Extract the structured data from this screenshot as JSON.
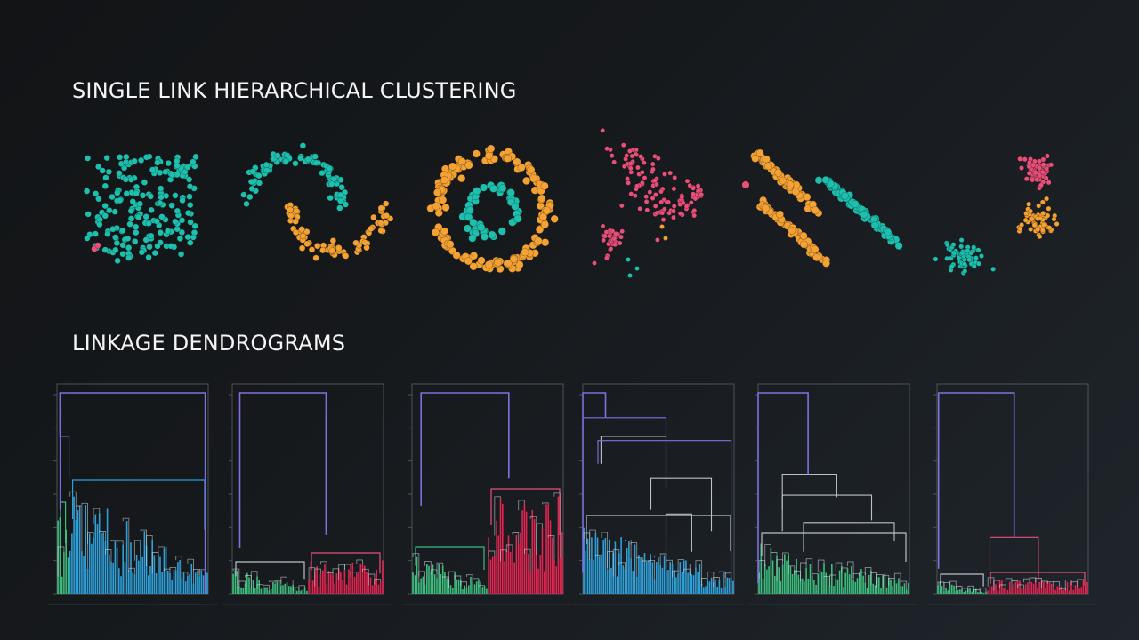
{
  "slide": {
    "heading_clustering": "SINGLE LINK HIERARCHICAL CLUSTERING",
    "heading_dendrograms": "LINKAGE DENDROGRAMS"
  },
  "colors": {
    "teal": "#1fbfae",
    "orange": "#f5a234",
    "pink": "#e8507a",
    "blue": "#2f9fd8",
    "green": "#3dbd7d",
    "red": "#e32350",
    "purple": "#7a72e0",
    "link_grey": "#b8c2c8",
    "frame": "#4a5259"
  },
  "scatter_plots": [
    {
      "dataset": "uniform-square",
      "clusters": [
        "teal",
        "pink"
      ]
    },
    {
      "dataset": "two-moons",
      "clusters": [
        "teal",
        "orange"
      ]
    },
    {
      "dataset": "concentric-circles",
      "clusters": [
        "orange",
        "teal"
      ]
    },
    {
      "dataset": "anisotropic-blobs",
      "clusters": [
        "pink",
        "orange",
        "teal"
      ]
    },
    {
      "dataset": "parallel-stripes",
      "clusters": [
        "orange",
        "teal",
        "pink"
      ]
    },
    {
      "dataset": "three-blobs",
      "clusters": [
        "pink",
        "orange",
        "teal"
      ]
    }
  ],
  "dendrograms": [
    {
      "dataset": "uniform-square",
      "clusters": [
        "green",
        "blue"
      ],
      "top_link": "purple"
    },
    {
      "dataset": "two-moons",
      "clusters": [
        "green",
        "red"
      ],
      "top_link": "purple"
    },
    {
      "dataset": "concentric-circles",
      "clusters": [
        "green",
        "red"
      ],
      "top_link": "purple"
    },
    {
      "dataset": "anisotropic-blobs",
      "clusters": [
        "blue"
      ],
      "top_link": "purple"
    },
    {
      "dataset": "parallel-stripes",
      "clusters": [
        "green"
      ],
      "top_link": "purple"
    },
    {
      "dataset": "three-blobs",
      "clusters": [
        "green",
        "red"
      ],
      "top_link": "purple"
    }
  ]
}
